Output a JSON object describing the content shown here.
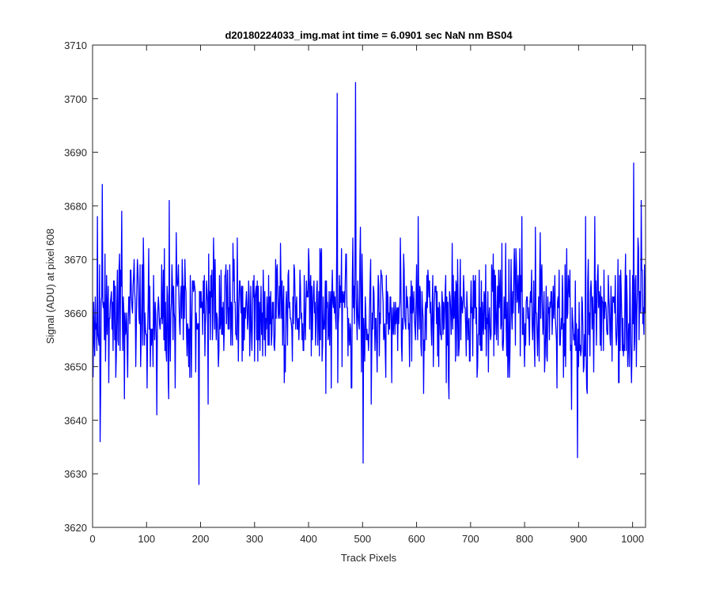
{
  "chart_data": {
    "type": "line",
    "title": "d20180224033_img.mat int time = 6.0901 sec  NaN nm BS04",
    "xlabel": "Track Pixels",
    "ylabel": "Signal (ADU) at pixel 608",
    "xlim": [
      0,
      1024
    ],
    "ylim": [
      3620,
      3710
    ],
    "xticks": [
      0,
      100,
      200,
      300,
      400,
      500,
      600,
      700,
      800,
      900,
      1000
    ],
    "yticks": [
      3620,
      3630,
      3640,
      3650,
      3660,
      3670,
      3680,
      3690,
      3700,
      3710
    ],
    "grid": false,
    "color": "#0000ff",
    "series": [
      {
        "x_start": 1,
        "x_step": 1,
        "mean": 3659.9,
        "std": 6.4,
        "samples": 1024,
        "notable_points": [
          {
            "x": 18,
            "y": 3684
          },
          {
            "x": 197,
            "y": 3628
          },
          {
            "x": 453,
            "y": 3701
          },
          {
            "x": 487,
            "y": 3703
          },
          {
            "x": 501,
            "y": 3632
          },
          {
            "x": 898,
            "y": 3633
          },
          {
            "x": 1002,
            "y": 3688
          }
        ]
      }
    ]
  }
}
